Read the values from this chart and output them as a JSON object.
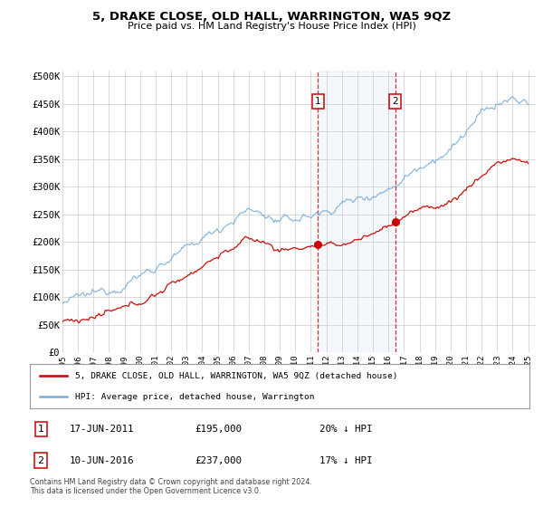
{
  "title": "5, DRAKE CLOSE, OLD HALL, WARRINGTON, WA5 9QZ",
  "subtitle": "Price paid vs. HM Land Registry's House Price Index (HPI)",
  "ylabel_ticks": [
    "£0",
    "£50K",
    "£100K",
    "£150K",
    "£200K",
    "£250K",
    "£300K",
    "£350K",
    "£400K",
    "£450K",
    "£500K"
  ],
  "ytick_values": [
    0,
    50000,
    100000,
    150000,
    200000,
    250000,
    300000,
    350000,
    400000,
    450000,
    500000
  ],
  "ylim": [
    0,
    510000
  ],
  "xlim_start": 1995.0,
  "xlim_end": 2025.5,
  "red_line_color": "#cc0000",
  "blue_line_color": "#7aaddb",
  "grid_color": "#cccccc",
  "background_color": "#ffffff",
  "sale1_x": 2011.46,
  "sale1_y": 195000,
  "sale2_x": 2016.44,
  "sale2_y": 237000,
  "sale1_date": "17-JUN-2011",
  "sale1_price": "£195,000",
  "sale1_hpi": "20% ↓ HPI",
  "sale2_date": "10-JUN-2016",
  "sale2_price": "£237,000",
  "sale2_hpi": "17% ↓ HPI",
  "legend_line1": "5, DRAKE CLOSE, OLD HALL, WARRINGTON, WA5 9QZ (detached house)",
  "legend_line2": "HPI: Average price, detached house, Warrington",
  "footer": "Contains HM Land Registry data © Crown copyright and database right 2024.\nThis data is licensed under the Open Government Licence v3.0.",
  "xtick_years": [
    1995,
    1996,
    1997,
    1998,
    1999,
    2000,
    2001,
    2002,
    2003,
    2004,
    2005,
    2006,
    2007,
    2008,
    2009,
    2010,
    2011,
    2012,
    2013,
    2014,
    2015,
    2016,
    2017,
    2018,
    2019,
    2020,
    2021,
    2022,
    2023,
    2024,
    2025
  ]
}
